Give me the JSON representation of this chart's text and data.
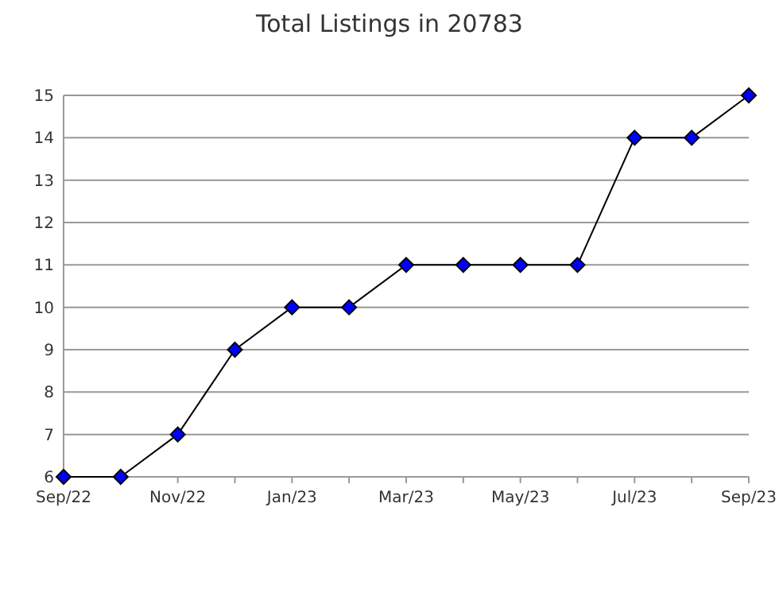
{
  "chart_data": {
    "type": "line",
    "title": "Total Listings in 20783",
    "categories": [
      "Sep/22",
      null,
      "Nov/22",
      null,
      "Jan/23",
      null,
      "Mar/23",
      null,
      "May/23",
      null,
      "Jul/23",
      null,
      "Sep/23"
    ],
    "series": [
      {
        "color": "#0000ff",
        "values": [
          6,
          6,
          7,
          9,
          10,
          10,
          11,
          11,
          11,
          11,
          14,
          14,
          15
        ]
      }
    ],
    "ylim": [
      6,
      15
    ],
    "yticks": [
      6,
      7,
      8,
      9,
      10,
      11,
      12,
      13,
      14,
      15
    ],
    "grid": "y",
    "marker": "diamond",
    "line_style": "solid"
  }
}
